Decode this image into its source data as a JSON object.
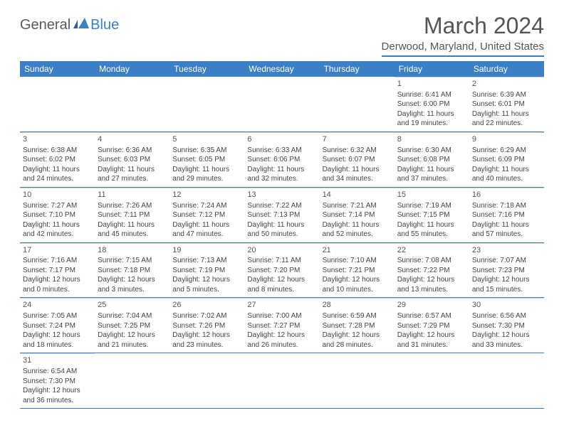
{
  "logo": {
    "textA": "General",
    "textB": "Blue"
  },
  "title": "March 2024",
  "location": "Derwood, Maryland, United States",
  "style": {
    "accent": "#3b7fc4",
    "header_bg": "#3b7fc4",
    "header_text": "#ffffff",
    "cell_text": "#444444",
    "title_color": "#555555",
    "font_small": 10,
    "font_header": 12,
    "font_title": 32
  },
  "day_names": [
    "Sunday",
    "Monday",
    "Tuesday",
    "Wednesday",
    "Thursday",
    "Friday",
    "Saturday"
  ],
  "weeks": [
    [
      null,
      null,
      null,
      null,
      null,
      {
        "n": "1",
        "rise": "6:41 AM",
        "set": "6:00 PM",
        "dl": "11 hours and 19 minutes."
      },
      {
        "n": "2",
        "rise": "6:39 AM",
        "set": "6:01 PM",
        "dl": "11 hours and 22 minutes."
      }
    ],
    [
      {
        "n": "3",
        "rise": "6:38 AM",
        "set": "6:02 PM",
        "dl": "11 hours and 24 minutes."
      },
      {
        "n": "4",
        "rise": "6:36 AM",
        "set": "6:03 PM",
        "dl": "11 hours and 27 minutes."
      },
      {
        "n": "5",
        "rise": "6:35 AM",
        "set": "6:05 PM",
        "dl": "11 hours and 29 minutes."
      },
      {
        "n": "6",
        "rise": "6:33 AM",
        "set": "6:06 PM",
        "dl": "11 hours and 32 minutes."
      },
      {
        "n": "7",
        "rise": "6:32 AM",
        "set": "6:07 PM",
        "dl": "11 hours and 34 minutes."
      },
      {
        "n": "8",
        "rise": "6:30 AM",
        "set": "6:08 PM",
        "dl": "11 hours and 37 minutes."
      },
      {
        "n": "9",
        "rise": "6:29 AM",
        "set": "6:09 PM",
        "dl": "11 hours and 40 minutes."
      }
    ],
    [
      {
        "n": "10",
        "rise": "7:27 AM",
        "set": "7:10 PM",
        "dl": "11 hours and 42 minutes."
      },
      {
        "n": "11",
        "rise": "7:26 AM",
        "set": "7:11 PM",
        "dl": "11 hours and 45 minutes."
      },
      {
        "n": "12",
        "rise": "7:24 AM",
        "set": "7:12 PM",
        "dl": "11 hours and 47 minutes."
      },
      {
        "n": "13",
        "rise": "7:22 AM",
        "set": "7:13 PM",
        "dl": "11 hours and 50 minutes."
      },
      {
        "n": "14",
        "rise": "7:21 AM",
        "set": "7:14 PM",
        "dl": "11 hours and 52 minutes."
      },
      {
        "n": "15",
        "rise": "7:19 AM",
        "set": "7:15 PM",
        "dl": "11 hours and 55 minutes."
      },
      {
        "n": "16",
        "rise": "7:18 AM",
        "set": "7:16 PM",
        "dl": "11 hours and 57 minutes."
      }
    ],
    [
      {
        "n": "17",
        "rise": "7:16 AM",
        "set": "7:17 PM",
        "dl": "12 hours and 0 minutes."
      },
      {
        "n": "18",
        "rise": "7:15 AM",
        "set": "7:18 PM",
        "dl": "12 hours and 3 minutes."
      },
      {
        "n": "19",
        "rise": "7:13 AM",
        "set": "7:19 PM",
        "dl": "12 hours and 5 minutes."
      },
      {
        "n": "20",
        "rise": "7:11 AM",
        "set": "7:20 PM",
        "dl": "12 hours and 8 minutes."
      },
      {
        "n": "21",
        "rise": "7:10 AM",
        "set": "7:21 PM",
        "dl": "12 hours and 10 minutes."
      },
      {
        "n": "22",
        "rise": "7:08 AM",
        "set": "7:22 PM",
        "dl": "12 hours and 13 minutes."
      },
      {
        "n": "23",
        "rise": "7:07 AM",
        "set": "7:23 PM",
        "dl": "12 hours and 15 minutes."
      }
    ],
    [
      {
        "n": "24",
        "rise": "7:05 AM",
        "set": "7:24 PM",
        "dl": "12 hours and 18 minutes."
      },
      {
        "n": "25",
        "rise": "7:04 AM",
        "set": "7:25 PM",
        "dl": "12 hours and 21 minutes."
      },
      {
        "n": "26",
        "rise": "7:02 AM",
        "set": "7:26 PM",
        "dl": "12 hours and 23 minutes."
      },
      {
        "n": "27",
        "rise": "7:00 AM",
        "set": "7:27 PM",
        "dl": "12 hours and 26 minutes."
      },
      {
        "n": "28",
        "rise": "6:59 AM",
        "set": "7:28 PM",
        "dl": "12 hours and 28 minutes."
      },
      {
        "n": "29",
        "rise": "6:57 AM",
        "set": "7:29 PM",
        "dl": "12 hours and 31 minutes."
      },
      {
        "n": "30",
        "rise": "6:56 AM",
        "set": "7:30 PM",
        "dl": "12 hours and 33 minutes."
      }
    ],
    [
      {
        "n": "31",
        "rise": "6:54 AM",
        "set": "7:30 PM",
        "dl": "12 hours and 36 minutes."
      },
      null,
      null,
      null,
      null,
      null,
      null
    ]
  ],
  "labels": {
    "sunrise": "Sunrise: ",
    "sunset": "Sunset: ",
    "daylight": "Daylight: "
  }
}
